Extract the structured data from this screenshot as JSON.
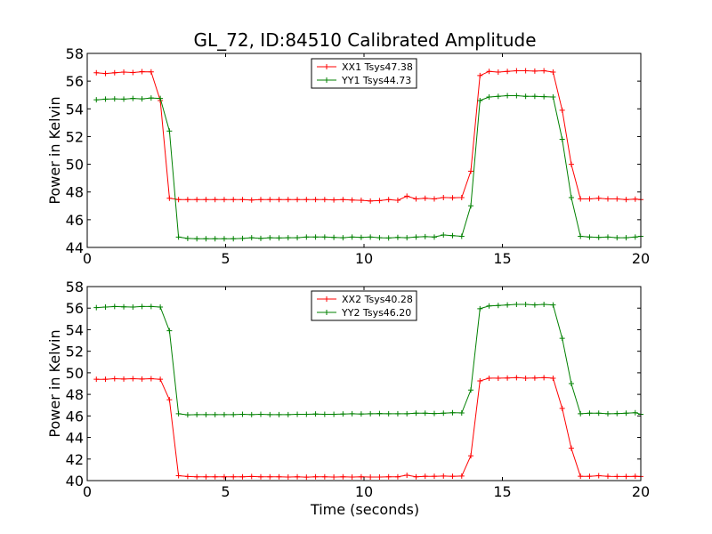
{
  "chart_data": [
    {
      "type": "line",
      "title": "GL_72, ID:84510 Calibrated Amplitude",
      "xlabel": "",
      "ylabel": "Power in Kelvin",
      "xlim": [
        0,
        20
      ],
      "ylim": [
        44,
        58
      ],
      "xticks": [
        "0",
        "5",
        "10",
        "15",
        "20"
      ],
      "yticks": [
        "44",
        "46",
        "48",
        "50",
        "52",
        "54",
        "56",
        "58"
      ],
      "legend_position": "top-center",
      "grid": false,
      "x": [
        0.33,
        0.66,
        0.99,
        1.32,
        1.65,
        1.98,
        2.31,
        2.64,
        2.97,
        3.3,
        3.63,
        3.96,
        4.29,
        4.62,
        4.95,
        5.28,
        5.61,
        5.94,
        6.27,
        6.6,
        6.93,
        7.26,
        7.59,
        7.92,
        8.25,
        8.58,
        8.91,
        9.24,
        9.57,
        9.9,
        10.23,
        10.56,
        10.89,
        11.22,
        11.55,
        11.88,
        12.21,
        12.54,
        12.87,
        13.2,
        13.53,
        13.86,
        14.19,
        14.52,
        14.85,
        15.18,
        15.51,
        15.84,
        16.17,
        16.5,
        16.83,
        17.16,
        17.49,
        17.82,
        18.15,
        18.48,
        18.81,
        19.14,
        19.47,
        19.8,
        20.0
      ],
      "series": [
        {
          "name": "XX1 Tsys47.38",
          "color": "#ff0000",
          "values": [
            56.6,
            56.55,
            56.6,
            56.65,
            56.62,
            56.68,
            56.67,
            54.6,
            47.55,
            47.45,
            47.45,
            47.45,
            47.45,
            47.45,
            47.45,
            47.45,
            47.45,
            47.42,
            47.45,
            47.45,
            47.45,
            47.45,
            47.45,
            47.45,
            47.45,
            47.45,
            47.43,
            47.45,
            47.42,
            47.4,
            47.35,
            47.38,
            47.45,
            47.4,
            47.7,
            47.5,
            47.55,
            47.5,
            47.6,
            47.58,
            47.6,
            49.5,
            56.4,
            56.7,
            56.65,
            56.7,
            56.75,
            56.75,
            56.72,
            56.75,
            56.65,
            53.9,
            50.0,
            47.5,
            47.5,
            47.55,
            47.5,
            47.5,
            47.45,
            47.48,
            47.45
          ]
        },
        {
          "name": "YY1 Tsys44.73",
          "color": "#008000",
          "values": [
            54.65,
            54.7,
            54.72,
            54.7,
            54.75,
            54.72,
            54.78,
            54.75,
            52.4,
            44.75,
            44.65,
            44.63,
            44.63,
            44.63,
            44.63,
            44.63,
            44.65,
            44.7,
            44.65,
            44.7,
            44.68,
            44.7,
            44.7,
            44.75,
            44.75,
            44.75,
            44.72,
            44.7,
            44.75,
            44.72,
            44.75,
            44.7,
            44.68,
            44.72,
            44.7,
            44.75,
            44.78,
            44.75,
            44.9,
            44.85,
            44.8,
            47.0,
            54.6,
            54.85,
            54.9,
            54.95,
            54.95,
            54.9,
            54.9,
            54.88,
            54.85,
            51.8,
            47.6,
            44.8,
            44.75,
            44.72,
            44.75,
            44.7,
            44.7,
            44.75,
            44.8
          ]
        }
      ]
    },
    {
      "type": "line",
      "title": "",
      "xlabel": "Time (seconds)",
      "ylabel": "Power in Kelvin",
      "xlim": [
        0,
        20
      ],
      "ylim": [
        40,
        58
      ],
      "xticks": [
        "0",
        "5",
        "10",
        "15",
        "20"
      ],
      "yticks": [
        "40",
        "42",
        "44",
        "46",
        "48",
        "50",
        "52",
        "54",
        "56",
        "58"
      ],
      "legend_position": "top-center",
      "grid": false,
      "x": [
        0.33,
        0.66,
        0.99,
        1.32,
        1.65,
        1.98,
        2.31,
        2.64,
        2.97,
        3.3,
        3.63,
        3.96,
        4.29,
        4.62,
        4.95,
        5.28,
        5.61,
        5.94,
        6.27,
        6.6,
        6.93,
        7.26,
        7.59,
        7.92,
        8.25,
        8.58,
        8.91,
        9.24,
        9.57,
        9.9,
        10.23,
        10.56,
        10.89,
        11.22,
        11.55,
        11.88,
        12.21,
        12.54,
        12.87,
        13.2,
        13.53,
        13.86,
        14.19,
        14.52,
        14.85,
        15.18,
        15.51,
        15.84,
        16.17,
        16.5,
        16.83,
        17.16,
        17.49,
        17.82,
        18.15,
        18.48,
        18.81,
        19.14,
        19.47,
        19.8,
        20.0
      ],
      "series": [
        {
          "name": "XX2 Tsys40.28",
          "color": "#ff0000",
          "values": [
            49.4,
            49.4,
            49.45,
            49.42,
            49.45,
            49.42,
            49.45,
            49.4,
            47.5,
            40.45,
            40.38,
            40.35,
            40.35,
            40.35,
            40.35,
            40.35,
            40.35,
            40.38,
            40.35,
            40.35,
            40.35,
            40.33,
            40.35,
            40.32,
            40.35,
            40.35,
            40.33,
            40.35,
            40.33,
            40.35,
            40.33,
            40.33,
            40.35,
            40.35,
            40.5,
            40.35,
            40.4,
            40.4,
            40.42,
            40.4,
            40.42,
            42.3,
            49.25,
            49.5,
            49.5,
            49.52,
            49.55,
            49.5,
            49.52,
            49.55,
            49.5,
            46.7,
            43.0,
            40.4,
            40.4,
            40.45,
            40.4,
            40.38,
            40.38,
            40.4,
            40.38
          ]
        },
        {
          "name": "YY2 Tsys46.20",
          "color": "#008000",
          "values": [
            56.05,
            56.1,
            56.15,
            56.12,
            56.1,
            56.15,
            56.15,
            56.1,
            53.9,
            46.2,
            46.1,
            46.12,
            46.12,
            46.12,
            46.12,
            46.12,
            46.15,
            46.12,
            46.15,
            46.12,
            46.12,
            46.12,
            46.15,
            46.15,
            46.18,
            46.15,
            46.15,
            46.18,
            46.2,
            46.18,
            46.2,
            46.22,
            46.2,
            46.2,
            46.2,
            46.25,
            46.25,
            46.22,
            46.25,
            46.3,
            46.28,
            48.4,
            55.95,
            56.2,
            56.25,
            56.3,
            56.35,
            56.35,
            56.3,
            56.35,
            56.3,
            53.2,
            49.0,
            46.2,
            46.25,
            46.25,
            46.2,
            46.22,
            46.25,
            46.3,
            46.15
          ]
        }
      ]
    }
  ]
}
